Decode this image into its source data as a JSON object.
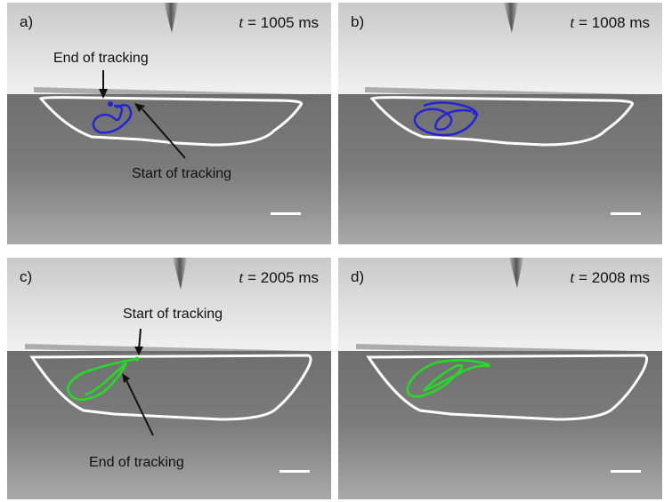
{
  "panels": [
    {
      "id": "a",
      "label": "a)",
      "t_symbol": "t",
      "time_text": "= 1005 ms",
      "track_color": "#2323d8",
      "annotations": {
        "end": "End of tracking",
        "start": "Start of tracking"
      }
    },
    {
      "id": "b",
      "label": "b)",
      "t_symbol": "t",
      "time_text": "= 1008 ms",
      "track_color": "#2323d8"
    },
    {
      "id": "c",
      "label": "c)",
      "t_symbol": "t",
      "time_text": "= 2005 ms",
      "track_color": "#22dd22",
      "annotations": {
        "start": "Start of tracking",
        "end": "End of tracking"
      }
    },
    {
      "id": "d",
      "label": "d)",
      "t_symbol": "t",
      "time_text": "= 2008 ms",
      "track_color": "#22dd22"
    }
  ]
}
